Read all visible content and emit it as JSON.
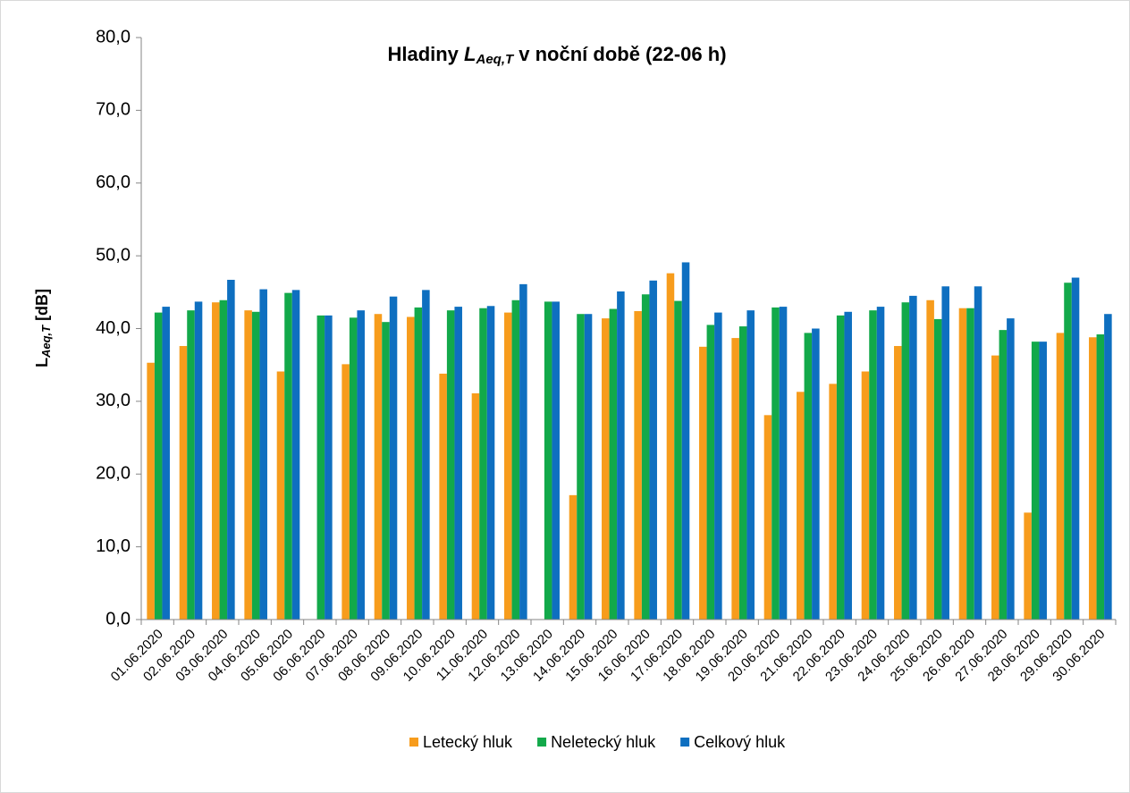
{
  "chart_data": {
    "type": "bar",
    "title": [
      "Hladiny ",
      "L",
      "Aeq,T",
      " v noční době (22-06 h)"
    ],
    "ylabel": [
      "L",
      "Aeq,T",
      " [dB]"
    ],
    "categories": [
      "01.06.2020",
      "02.06.2020",
      "03.06.2020",
      "04.06.2020",
      "05.06.2020",
      "06.06.2020",
      "07.06.2020",
      "08.06.2020",
      "09.06.2020",
      "10.06.2020",
      "11.06.2020",
      "12.06.2020",
      "13.06.2020",
      "14.06.2020",
      "15.06.2020",
      "16.06.2020",
      "17.06.2020",
      "18.06.2020",
      "19.06.2020",
      "20.06.2020",
      "21.06.2020",
      "22.06.2020",
      "23.06.2020",
      "24.06.2020",
      "25.06.2020",
      "26.06.2020",
      "27.06.2020",
      "28.06.2020",
      "29.06.2020",
      "30.06.2020"
    ],
    "series": [
      {
        "name": "Letecký hluk",
        "color": "#f79c1c",
        "values": [
          35.3,
          37.6,
          43.6,
          42.5,
          34.1,
          null,
          35.1,
          42.0,
          41.6,
          33.8,
          31.1,
          42.2,
          null,
          17.1,
          41.4,
          42.4,
          47.6,
          37.5,
          38.7,
          28.1,
          31.3,
          32.4,
          34.1,
          37.6,
          43.9,
          42.8,
          36.3,
          14.7,
          39.4,
          38.8
        ]
      },
      {
        "name": "Neletecký hluk",
        "color": "#12a94a",
        "values": [
          42.2,
          42.5,
          43.9,
          42.3,
          44.9,
          41.8,
          41.5,
          40.9,
          42.9,
          42.5,
          42.8,
          43.9,
          43.7,
          42.0,
          42.7,
          44.7,
          43.8,
          40.5,
          40.3,
          42.9,
          39.4,
          41.8,
          42.5,
          43.6,
          41.3,
          42.8,
          39.8,
          38.2,
          46.3,
          39.2
        ]
      },
      {
        "name": "Celkový hluk",
        "color": "#0e6fc0",
        "values": [
          43.0,
          43.7,
          46.7,
          45.4,
          45.3,
          41.8,
          42.5,
          44.4,
          45.3,
          43.0,
          43.1,
          46.1,
          43.7,
          42.0,
          45.1,
          46.6,
          49.1,
          42.2,
          42.5,
          43.0,
          40.0,
          42.3,
          43.0,
          44.5,
          45.8,
          45.8,
          41.4,
          38.2,
          47.0,
          42.0
        ]
      }
    ],
    "ylim": [
      0,
      80
    ],
    "yticks": [
      {
        "value": 0,
        "label": "0,0"
      },
      {
        "value": 10,
        "label": "10,0"
      },
      {
        "value": 20,
        "label": "20,0"
      },
      {
        "value": 30,
        "label": "30,0"
      },
      {
        "value": 40,
        "label": "40,0"
      },
      {
        "value": 50,
        "label": "50,0"
      },
      {
        "value": 60,
        "label": "60,0"
      },
      {
        "value": 70,
        "label": "70,0"
      },
      {
        "value": 80,
        "label": "80,0"
      }
    ],
    "grid": false,
    "legend": "bottom"
  }
}
